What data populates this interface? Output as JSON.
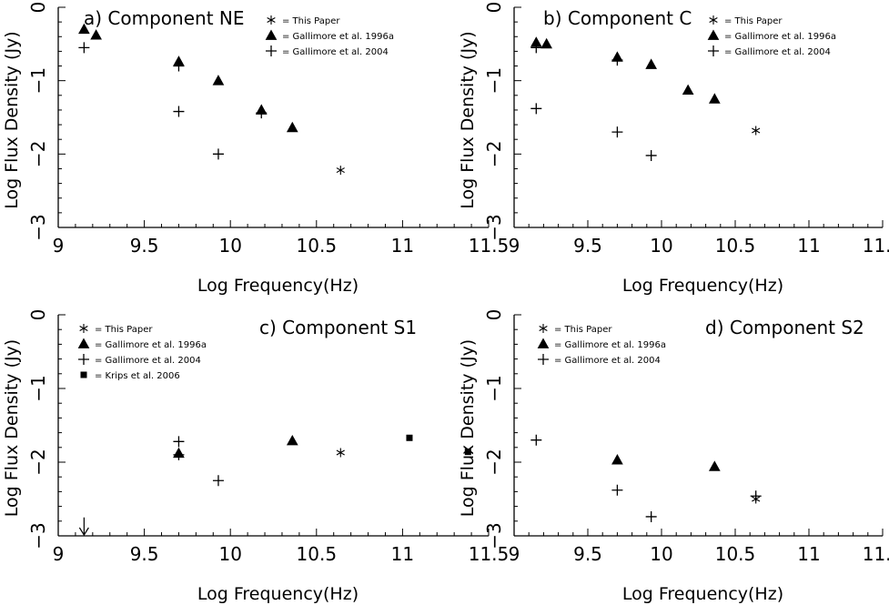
{
  "chart_data": [
    {
      "type": "scatter",
      "title": "a) Component NE",
      "xlabel": "Log Frequency(Hz)",
      "ylabel": "Log Flux Density (Jy)",
      "xlim": [
        9,
        11.5
      ],
      "ylim": [
        -3,
        0
      ],
      "xticks": [
        "9",
        "9.5",
        "10",
        "10.5",
        "11",
        "11.5"
      ],
      "yticks": [
        "0",
        "−1",
        "−2",
        "−3"
      ],
      "legend_position": "top-right",
      "series": [
        {
          "name": "= This Paper",
          "marker": "star",
          "points": [
            [
              10.64,
              -2.22
            ]
          ]
        },
        {
          "name": "= Gallimore et al. 1996a",
          "marker": "triangle",
          "points": [
            [
              9.15,
              -0.3
            ],
            [
              9.22,
              -0.38
            ],
            [
              9.7,
              -0.74
            ],
            [
              9.93,
              -1.0
            ],
            [
              10.18,
              -1.4
            ],
            [
              10.36,
              -1.64
            ]
          ]
        },
        {
          "name": "= Gallimore et al. 2004",
          "marker": "plus",
          "points": [
            [
              9.15,
              -0.55
            ],
            [
              9.7,
              -0.8
            ],
            [
              9.7,
              -1.42
            ],
            [
              9.93,
              -2.0
            ],
            [
              10.18,
              -1.44
            ]
          ]
        }
      ]
    },
    {
      "type": "scatter",
      "title": "b) Component C",
      "xlabel": "Log Frequency(Hz)",
      "ylabel": "Log Flux Density (Jy)",
      "xlim": [
        9,
        11.5
      ],
      "ylim": [
        -3,
        0
      ],
      "xticks": [
        "9",
        "9.5",
        "10",
        "10.5",
        "11",
        "11.5"
      ],
      "yticks": [
        "0",
        "−1",
        "−2",
        "−3"
      ],
      "legend_position": "top-right",
      "series": [
        {
          "name": "= This Paper",
          "marker": "star",
          "points": [
            [
              10.64,
              -1.68
            ]
          ]
        },
        {
          "name": "= Gallimore et al. 1996a",
          "marker": "triangle",
          "points": [
            [
              9.15,
              -0.48
            ],
            [
              9.22,
              -0.5
            ],
            [
              9.7,
              -0.68
            ],
            [
              9.93,
              -0.78
            ],
            [
              10.18,
              -1.13
            ],
            [
              10.36,
              -1.25
            ]
          ]
        },
        {
          "name": "= Gallimore et al. 2004",
          "marker": "plus",
          "points": [
            [
              9.15,
              -0.55
            ],
            [
              9.15,
              -1.38
            ],
            [
              9.7,
              -0.72
            ],
            [
              9.7,
              -1.7
            ],
            [
              9.93,
              -2.02
            ]
          ]
        }
      ]
    },
    {
      "type": "scatter",
      "title": "c) Component S1",
      "xlabel": "Log Frequency(Hz)",
      "ylabel": "Log Flux Density (Jy)",
      "xlim": [
        9,
        11.5
      ],
      "ylim": [
        -3,
        0
      ],
      "xticks": [
        "9",
        "9.5",
        "10",
        "10.5",
        "11",
        "11.5"
      ],
      "yticks": [
        "0",
        "−1",
        "−2",
        "−3"
      ],
      "legend_position": "top-left",
      "upper_limit_arrow": {
        "x": 9.15,
        "y_top": -2.75,
        "y_bottom": -3.0
      },
      "series": [
        {
          "name": "= This Paper",
          "marker": "star",
          "points": [
            [
              10.64,
              -1.87
            ]
          ]
        },
        {
          "name": "= Gallimore et al. 1996a",
          "marker": "triangle",
          "points": [
            [
              9.7,
              -1.88
            ],
            [
              10.36,
              -1.71
            ]
          ]
        },
        {
          "name": "= Gallimore et al. 2004",
          "marker": "plus",
          "points": [
            [
              9.7,
              -1.72
            ],
            [
              9.7,
              -1.9
            ],
            [
              9.93,
              -2.25
            ]
          ]
        },
        {
          "name": "= Krips et al. 2006",
          "marker": "square",
          "points": [
            [
              11.04,
              -1.67
            ],
            [
              11.38,
              -1.86
            ]
          ]
        }
      ]
    },
    {
      "type": "scatter",
      "title": "d) Component S2",
      "xlabel": "Log Frequency(Hz)",
      "ylabel": "Log Flux Density (Jy)",
      "xlim": [
        9,
        11.5
      ],
      "ylim": [
        -3,
        0
      ],
      "xticks": [
        "9",
        "9.5",
        "10",
        "10.5",
        "11",
        "11.5"
      ],
      "yticks": [
        "0",
        "−1",
        "−2",
        "−3"
      ],
      "legend_position": "top-left",
      "series": [
        {
          "name": "= This Paper",
          "marker": "star",
          "points": [
            [
              10.64,
              -2.5
            ]
          ]
        },
        {
          "name": "= Gallimore et al. 1996a",
          "marker": "triangle",
          "points": [
            [
              9.7,
              -1.97
            ],
            [
              10.36,
              -2.06
            ]
          ]
        },
        {
          "name": "= Gallimore et al. 2004",
          "marker": "plus",
          "points": [
            [
              9.15,
              -1.7
            ],
            [
              9.7,
              -2.38
            ],
            [
              9.93,
              -2.74
            ],
            [
              10.64,
              -2.46
            ]
          ]
        }
      ]
    }
  ]
}
